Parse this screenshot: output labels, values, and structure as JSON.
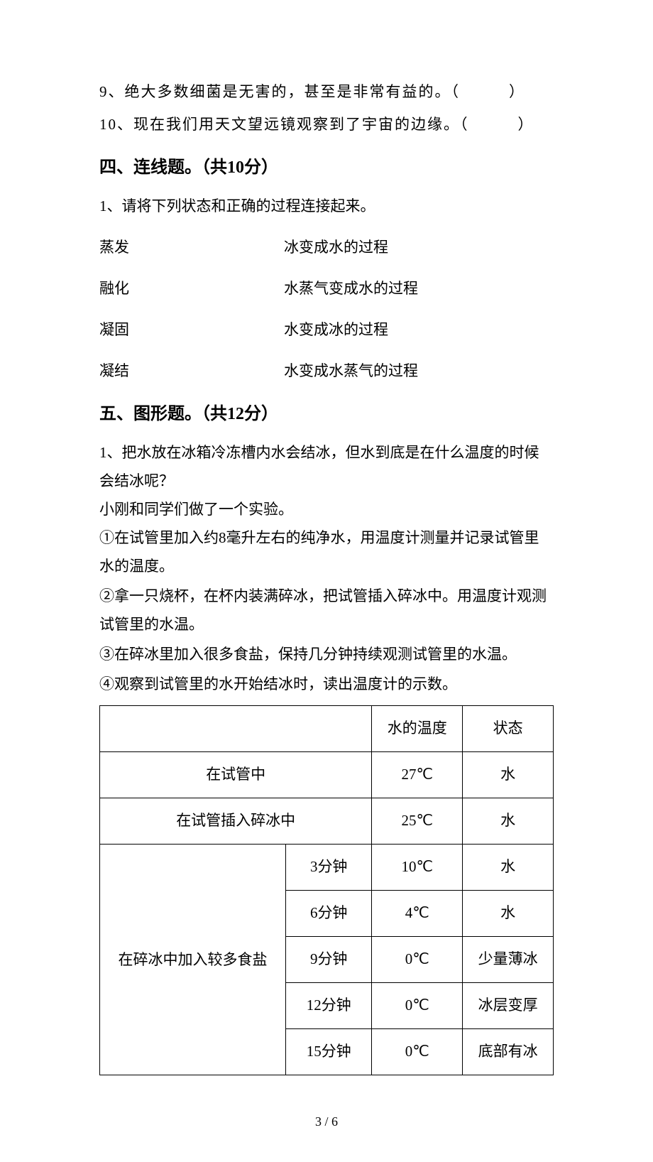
{
  "judgment": {
    "q9": "9、绝大多数细菌是无害的，甚至是非常有益的。（　　　）",
    "q10": "10、现在我们用天文望远镜观察到了宇宙的边缘。（　　　）"
  },
  "section4": {
    "heading": "四、连线题。（共10分）",
    "intro": "1、请将下列状态和正确的过程连接起来。",
    "pairs": [
      {
        "left": "蒸发",
        "right": "冰变成水的过程"
      },
      {
        "left": "融化",
        "right": "水蒸气变成水的过程"
      },
      {
        "left": "凝固",
        "right": "水变成冰的过程"
      },
      {
        "left": "凝结",
        "right": "水变成水蒸气的过程"
      }
    ]
  },
  "section5": {
    "heading": "五、图形题。（共12分）",
    "intro1": "1、把水放在冰箱冷冻槽内水会结冰，但水到底是在什么温度的时候会结冰呢？",
    "intro2": "小刚和同学们做了一个实验。",
    "step1": "①在试管里加入约8毫升左右的纯净水，用温度计测量并记录试管里水的温度。",
    "step2": "②拿一只烧杯，在杯内装满碎冰，把试管插入碎冰中。用温度计观测试管里的水温。",
    "step3": "③在碎冰里加入很多食盐，保持几分钟持续观测试管里的水温。",
    "step4": "④观察到试管里的水开始结冰时，读出温度计的示数。",
    "table": {
      "headers": {
        "cond": "",
        "time": "",
        "temp": "水的温度",
        "state": "状态"
      },
      "row_tube": {
        "cond": "在试管中",
        "temp": "27℃",
        "state": "水"
      },
      "row_ice": {
        "cond": "在试管插入碎冰中",
        "temp": "25℃",
        "state": "水"
      },
      "salt_label": "在碎冰中加入较多食盐",
      "salt_rows": [
        {
          "time": "3分钟",
          "temp": "10℃",
          "state": "水"
        },
        {
          "time": "6分钟",
          "temp": "4℃",
          "state": "水"
        },
        {
          "time": "9分钟",
          "temp": "0℃",
          "state": "少量薄冰"
        },
        {
          "time": "12分钟",
          "temp": "0℃",
          "state": "冰层变厚"
        },
        {
          "time": "15分钟",
          "temp": "0℃",
          "state": "底部有冰"
        }
      ]
    }
  },
  "footer": "3 / 6"
}
